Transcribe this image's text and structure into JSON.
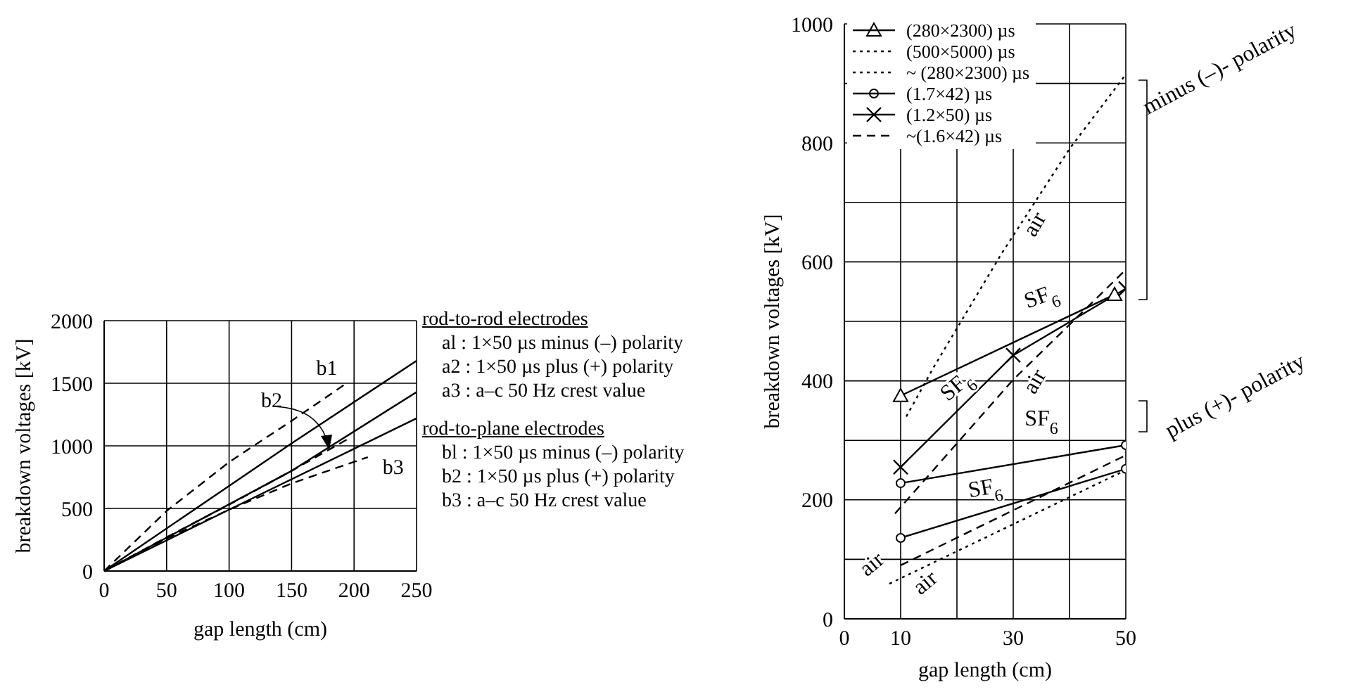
{
  "chart_data": [
    {
      "type": "line",
      "xlabel": "gap length (cm)",
      "ylabel": "breakdown voltages [kV]",
      "xlim": [
        0,
        250
      ],
      "xticks": [
        0,
        50,
        100,
        150,
        200,
        250
      ],
      "ylim": [
        0,
        2000
      ],
      "yticks": [
        0,
        500,
        1000,
        1500,
        2000
      ],
      "grid": true,
      "marker": "none",
      "annotations": [
        "rod-to-rod electrodes",
        "al : 1×50 µs  minus (–) polarity",
        "a2 : 1×50 µs  plus (+) polarity",
        "a3 : a–c 50 Hz crest value",
        "rod-to-plane electrodes",
        "bl : 1×50 µs  minus (–) polarity",
        "b2 : 1×50 µs  plus (+) polarity",
        "b3 : a–c 50 Hz crest value"
      ],
      "series": [
        {
          "color": "#000000",
          "line_style": "solid",
          "x": [
            0,
            150,
            250
          ],
          "values": [
            0,
            1020,
            1680
          ]
        },
        {
          "color": "#000000",
          "line_style": "solid",
          "x": [
            0,
            150,
            250
          ],
          "values": [
            0,
            800,
            1430
          ]
        },
        {
          "color": "#000000",
          "line_style": "solid",
          "x": [
            0,
            100,
            250
          ],
          "values": [
            0,
            490,
            1220
          ]
        },
        {
          "name": "b1",
          "color": "#000000",
          "line_style": "dashed",
          "x": [
            0,
            50,
            100,
            150,
            194
          ],
          "values": [
            0,
            480,
            870,
            1200,
            1500
          ]
        },
        {
          "name": "b2",
          "color": "#000000",
          "line_style": "dashed",
          "x": [
            0,
            50,
            100,
            150,
            196
          ],
          "values": [
            0,
            270,
            530,
            800,
            1060
          ]
        },
        {
          "name": "b3",
          "color": "#000000",
          "line_style": "dashed",
          "x": [
            0,
            50,
            100,
            150,
            211
          ],
          "values": [
            0,
            260,
            490,
            700,
            910
          ]
        }
      ]
    },
    {
      "type": "line",
      "xlabel": "gap length (cm)",
      "ylabel": "breakdown voltages [kV]",
      "xlim": [
        0,
        50
      ],
      "xticks": [
        0,
        10,
        {
          "value": 20,
          "label": null
        },
        30,
        {
          "value": 40,
          "label": null
        },
        50
      ],
      "ylim": [
        0,
        1000
      ],
      "yticks": [
        0,
        {
          "value": 100,
          "label": null
        },
        200,
        {
          "value": 300,
          "label": null
        },
        400,
        {
          "value": 500,
          "label": null
        },
        600,
        {
          "value": 700,
          "label": null
        },
        800,
        {
          "value": 900,
          "label": null
        },
        1000
      ],
      "grid": true,
      "legend": "top left",
      "annotations": [
        "air",
        "SF$_{6}$",
        "SF$_{6}$",
        "air",
        "SF$_{6}$",
        "SF$_{6}$",
        "air",
        "air",
        "minus (–)- polarity",
        "plus (+)- polarity"
      ],
      "series": [
        {
          "name": "(280×2300) µs",
          "color": "#000000",
          "line_style": "solid",
          "marker": "triangle",
          "x": [
            10,
            48
          ],
          "values": [
            375,
            545
          ]
        },
        {
          "name": "(500×5000) µs",
          "color": "#000000",
          "line_style": "dotted",
          "marker": "none",
          "x": [
            11,
            16,
            28,
            40,
            50
          ],
          "values": [
            340,
            425,
            615,
            790,
            915
          ]
        },
        {
          "name": "~ (280×2300) µs",
          "color": "#000000",
          "line_style": "dotted",
          "marker": "none",
          "x": [
            8,
            50
          ],
          "values": [
            59,
            250
          ]
        },
        {
          "name": "(1.7×42) µs",
          "color": "#000000",
          "line_style": "solid",
          "marker": "circle",
          "x": [
            10,
            50
          ],
          "values": [
            228,
            292
          ]
        },
        {
          "color": "#000000",
          "line_style": "solid",
          "marker": "circle",
          "x": [
            10,
            50
          ],
          "values": [
            136,
            252
          ]
        },
        {
          "name": "(1.2×50) µs",
          "color": "#000000",
          "line_style": "solid",
          "marker": "cross",
          "x": [
            10,
            30,
            50
          ],
          "values": [
            255,
            443,
            555
          ]
        },
        {
          "name": "~(1.6×42) µs",
          "color": "#000000",
          "line_style": "dashed",
          "marker": "none",
          "x": [
            9,
            30,
            50
          ],
          "values": [
            177,
            402,
            587
          ]
        },
        {
          "color": "#000000",
          "line_style": "dashed",
          "marker": "none",
          "x": [
            10,
            50
          ],
          "values": [
            90,
            275
          ]
        }
      ]
    }
  ]
}
